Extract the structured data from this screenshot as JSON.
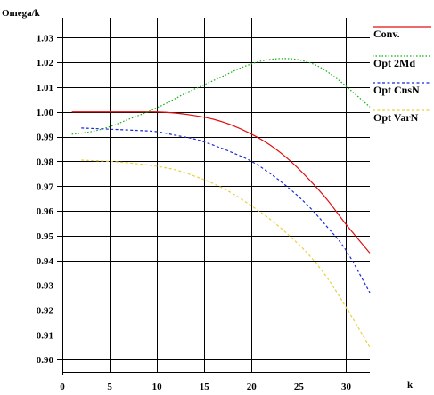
{
  "chart_data": {
    "type": "line",
    "ylabel": "Omega/k",
    "xlabel": "k",
    "xlim": [
      0,
      32.5
    ],
    "ylim": [
      0.895,
      1.038
    ],
    "x_ticks": [
      0,
      5,
      10,
      15,
      20,
      25,
      30
    ],
    "x_tick_labels": [
      "0",
      "5",
      "10",
      "15",
      "20",
      "25",
      "30"
    ],
    "y_ticks": [
      0.9,
      0.91,
      0.92,
      0.93,
      0.94,
      0.95,
      0.96,
      0.97,
      0.98,
      0.99,
      1.0,
      1.01,
      1.02,
      1.03
    ],
    "y_tick_labels": [
      "0.90",
      "0.91",
      "0.92",
      "0.93",
      "0.94",
      "0.95",
      "0.96",
      "0.97",
      "0.98",
      "0.99",
      "1.00",
      "1.01",
      "1.02",
      "1.03"
    ],
    "grid": true,
    "legend_position": "right",
    "series": [
      {
        "name": "Conv.",
        "color": "#e01010",
        "style": "solid",
        "x": [
          1,
          4,
          8,
          10,
          12,
          14,
          16,
          18,
          20,
          22,
          24,
          26,
          28,
          30,
          32.5
        ],
        "y": [
          1.0,
          1.0,
          1.0,
          1.0,
          0.9995,
          0.9985,
          0.997,
          0.9945,
          0.991,
          0.9865,
          0.9805,
          0.973,
          0.9645,
          0.9545,
          0.943
        ]
      },
      {
        "name": "Opt 2Md",
        "color": "#10b010",
        "style": "dotted",
        "x": [
          1,
          3,
          5,
          7,
          9,
          11,
          13,
          15,
          17,
          19,
          21,
          23,
          25,
          27,
          29,
          31,
          32.5
        ],
        "y": [
          0.991,
          0.992,
          0.994,
          0.997,
          1.0,
          1.0035,
          1.0075,
          1.011,
          1.0145,
          1.018,
          1.0205,
          1.0215,
          1.021,
          1.0185,
          1.0135,
          1.007,
          1.002
        ]
      },
      {
        "name": "Opt CnsN",
        "color": "#1a2ad8",
        "style": "dashed",
        "x": [
          2,
          5,
          8,
          10,
          12,
          14,
          16,
          18,
          20,
          22,
          24,
          26,
          28,
          30,
          32.5
        ],
        "y": [
          0.9935,
          0.993,
          0.9925,
          0.992,
          0.9905,
          0.989,
          0.9865,
          0.9835,
          0.98,
          0.975,
          0.969,
          0.962,
          0.9535,
          0.944,
          0.927
        ]
      },
      {
        "name": "Opt VarN",
        "color": "#e8d040",
        "style": "dashed",
        "x": [
          2,
          5,
          8,
          10,
          12,
          14,
          16,
          18,
          20,
          22,
          24,
          26,
          28,
          30,
          32.5
        ],
        "y": [
          0.9805,
          0.98,
          0.979,
          0.978,
          0.9765,
          0.974,
          0.971,
          0.967,
          0.962,
          0.9565,
          0.95,
          0.9425,
          0.933,
          0.921,
          0.905
        ]
      }
    ]
  }
}
